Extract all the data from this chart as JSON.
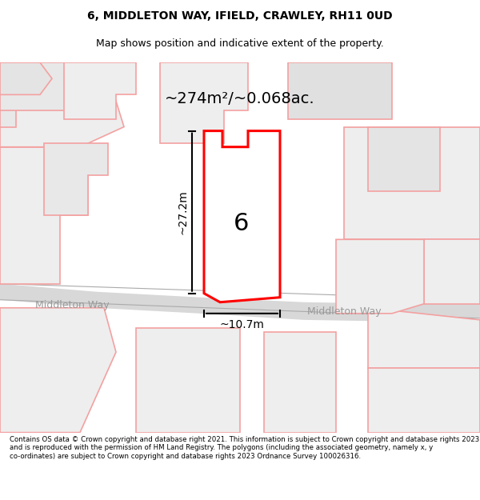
{
  "title_line1": "6, MIDDLETON WAY, IFIELD, CRAWLEY, RH11 0UD",
  "title_line2": "Map shows position and indicative extent of the property.",
  "area_label": "~274m²/~0.068ac.",
  "number_label": "6",
  "width_label": "~10.7m",
  "height_label": "~27.2m",
  "street_label": "Middleton Way",
  "footer_text": "Contains OS data © Crown copyright and database right 2021. This information is subject to Crown copyright and database rights 2023 and is reproduced with the permission of HM Land Registry. The polygons (including the associated geometry, namely x, y co-ordinates) are subject to Crown copyright and database rights 2023 Ordnance Survey 100026316.",
  "background_color": "#ffffff",
  "map_bg_color": "#f5f5f5",
  "road_color": "#e0e0e0",
  "property_outline_color": "#ff0000",
  "nearby_outline_color": "#f4a0a0",
  "dim_line_color": "#000000",
  "street_text_color": "#999999",
  "title_header_bg": "#ffffff",
  "footer_bg": "#ffffff"
}
